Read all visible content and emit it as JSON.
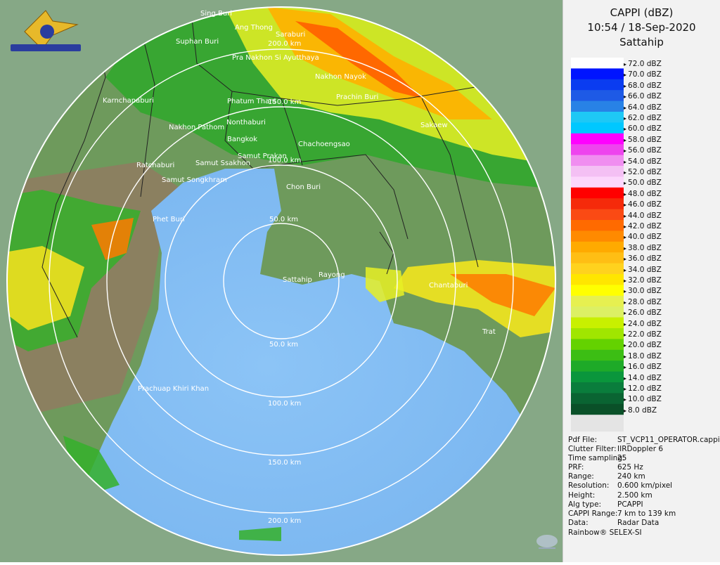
{
  "header": {
    "product": "CAPPI (dBZ)",
    "datetime": "10:54 / 18-Sep-2020",
    "station": "Sattahip"
  },
  "scale": {
    "labels": [
      "72.0 dBZ",
      "70.0 dBZ",
      "68.0 dBZ",
      "66.0 dBZ",
      "64.0 dBZ",
      "62.0 dBZ",
      "60.0 dBZ",
      "58.0 dBZ",
      "56.0 dBZ",
      "54.0 dBZ",
      "52.0 dBZ",
      "50.0 dBZ",
      "48.0 dBZ",
      "46.0 dBZ",
      "44.0 dBZ",
      "42.0 dBZ",
      "40.0 dBZ",
      "38.0 dBZ",
      "36.0 dBZ",
      "34.0 dBZ",
      "32.0 dBZ",
      "30.0 dBZ",
      "28.0 dBZ",
      "26.0 dBZ",
      "24.0 dBZ",
      "22.0 dBZ",
      "20.0 dBZ",
      "18.0 dBZ",
      "16.0 dBZ",
      "14.0 dBZ",
      "12.0 dBZ",
      "10.0 dBZ",
      "8.0 dBZ"
    ],
    "colors": [
      "#ffffff",
      "#0014ff",
      "#0a3cf0",
      "#1e5ae6",
      "#2882e6",
      "#1ec8f5",
      "#00c8ff",
      "#ff00ff",
      "#ee44ee",
      "#f08ef0",
      "#f4c0f4",
      "#fcd6fc",
      "#ff0000",
      "#f52a0a",
      "#fa4a14",
      "#ff6a00",
      "#ff8a00",
      "#ffaa00",
      "#ffbe14",
      "#ffd21e",
      "#ffe600",
      "#ffff00",
      "#e6f050",
      "#dcf064",
      "#c8f000",
      "#a0e600",
      "#64d200",
      "#3cbe14",
      "#1eaa28",
      "#0a963c",
      "#0a7d3c",
      "#0a6432",
      "#0a5028"
    ]
  },
  "info": [
    {
      "k": "Pdf File:",
      "v": "ST_VCP11_OPERATOR.cappi"
    },
    {
      "k": "Clutter Filter:",
      "v": "IIRDoppler 6"
    },
    {
      "k": "Time sampling:",
      "v": "25"
    },
    {
      "k": "PRF:",
      "v": "625 Hz"
    },
    {
      "k": "Range:",
      "v": "240 km"
    },
    {
      "k": "Resolution:",
      "v": "0.600 km/pixel"
    },
    {
      "k": "Height:",
      "v": "2.500 km"
    },
    {
      "k": "Alg type:",
      "v": "PCAPPI"
    },
    {
      "k": "CAPPI Range:",
      "v": "7 km to 139 km"
    },
    {
      "k": "Data:",
      "v": "Radar Data"
    }
  ],
  "footer": "Rainbow® SELEX-SI",
  "range_rings": [
    "50.0 km",
    "100.0 km",
    "150.0 km",
    "200.0 km"
  ],
  "range_labels_north": [
    "50.0 km",
    "100.0 km",
    "150.0 km",
    "200.0 km"
  ],
  "cities": [
    "Sing Buri",
    "Ang Thong",
    "Saraburi",
    "Suphan Buri",
    "Pra Nakhon Si Ayutthaya",
    "Nakhon Nayok",
    "Prachin Buri",
    "Karnchanaburi",
    "Phatum Thani",
    "Nakhon Pathom",
    "Nonthaburi",
    "Sakaew",
    "Bangkok",
    "Chachoengsao",
    "Samut Prakan",
    "Ratchaburi",
    "Samut Ssakhon",
    "Samut Songkhram",
    "Chon Buri",
    "Phet Buri",
    "Sattahip",
    "Rayong",
    "Chantaburi",
    "Trat",
    "Prachuap Khiri Khan"
  ]
}
